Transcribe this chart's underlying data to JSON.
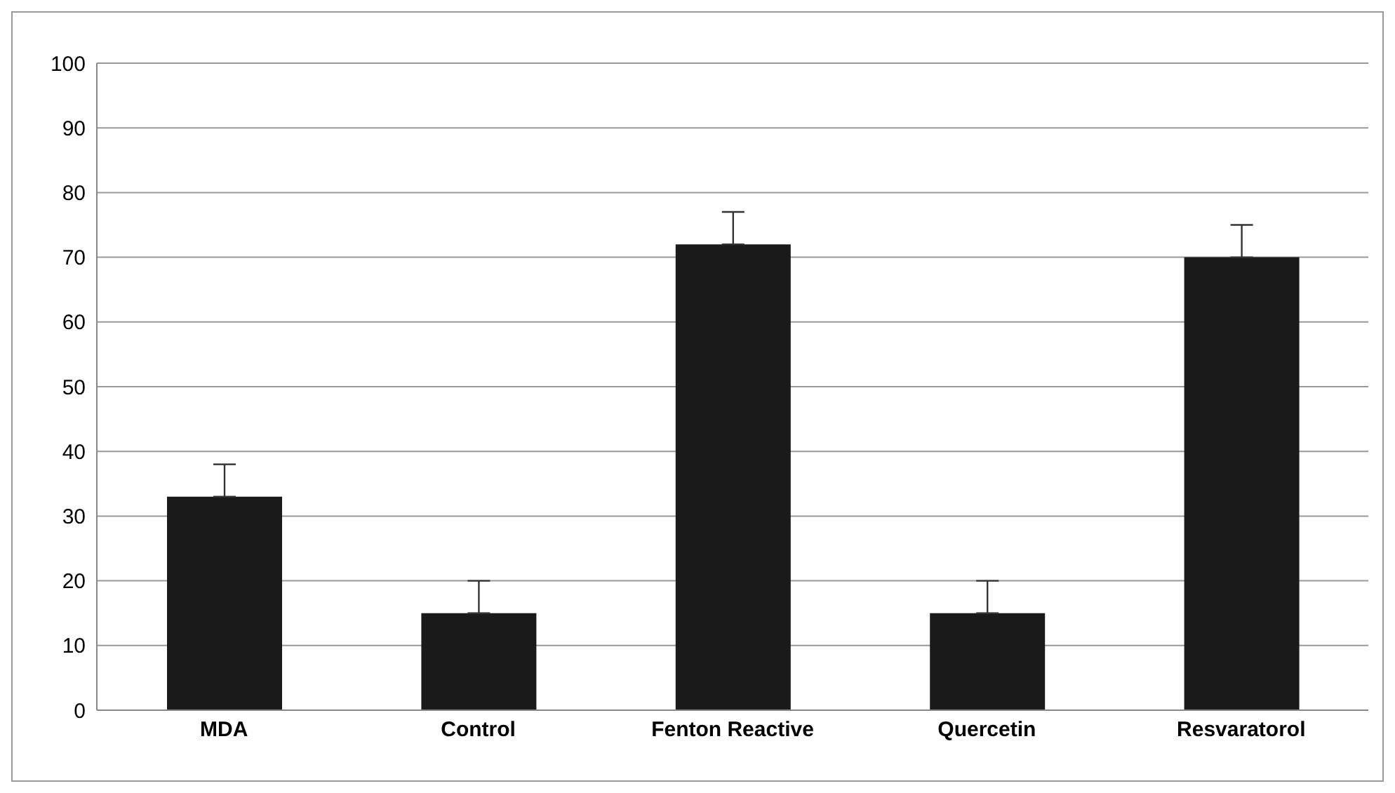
{
  "chart_data": {
    "type": "bar",
    "categories": [
      "MDA",
      "Control",
      "Fenton Reactive",
      "Quercetin",
      "Resvaratorol"
    ],
    "values": [
      33,
      15,
      72,
      15,
      70
    ],
    "errors": [
      [
        33,
        38
      ],
      [
        15,
        20
      ],
      [
        72,
        77
      ],
      [
        15,
        20
      ],
      [
        70,
        75
      ]
    ],
    "color": "#1a1a1a",
    "ylim": [
      0,
      100
    ],
    "yticks": [
      0,
      10,
      20,
      30,
      40,
      50,
      60,
      70,
      80,
      90,
      100
    ],
    "grid": "y"
  }
}
